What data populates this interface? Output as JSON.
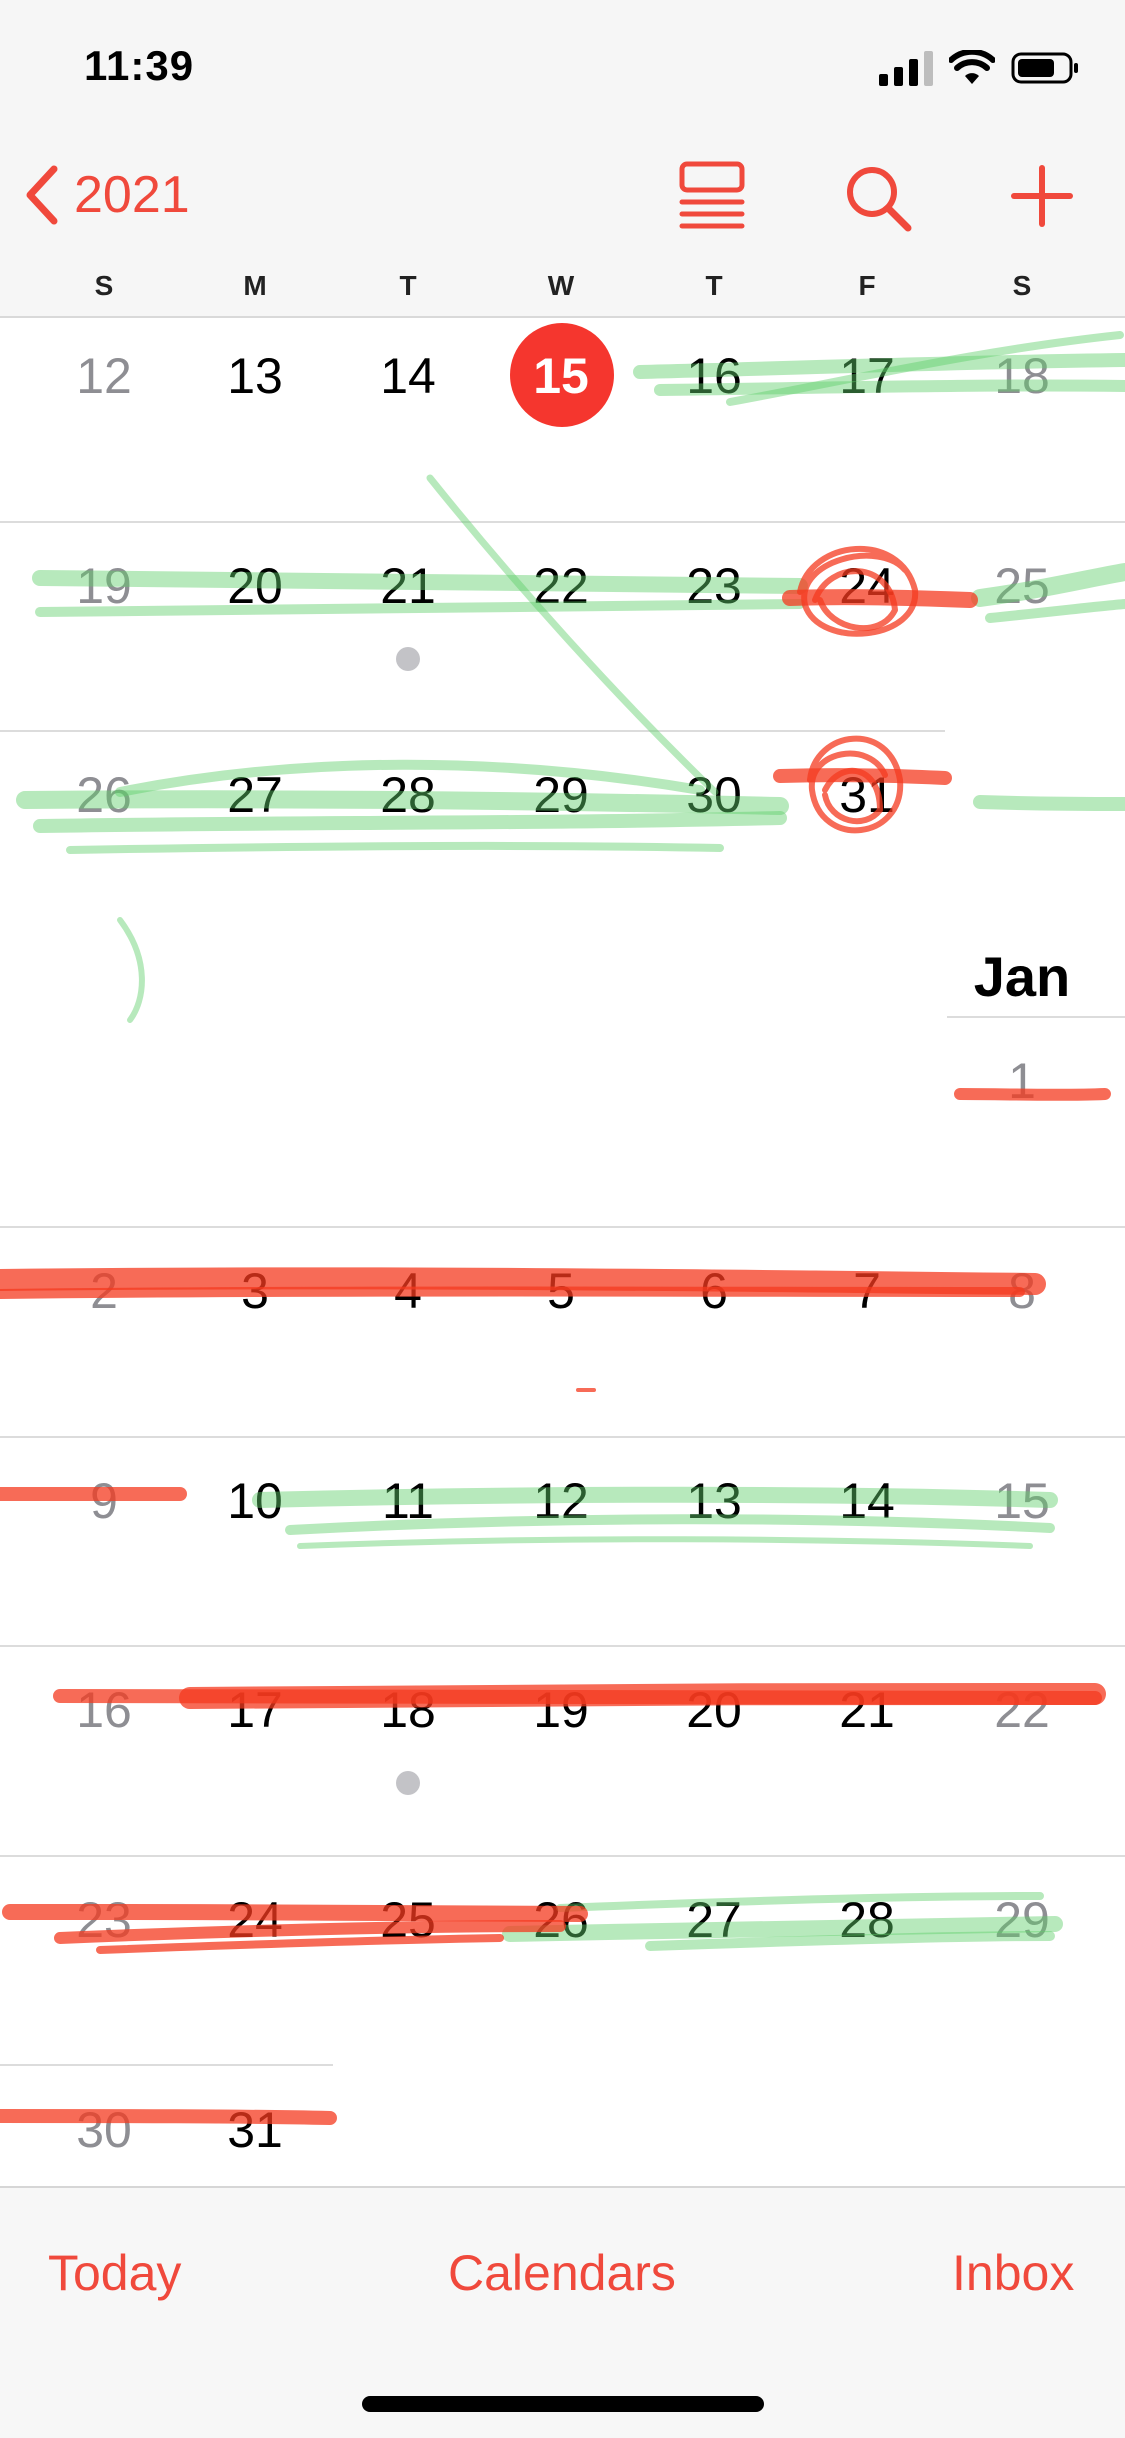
{
  "status_bar": {
    "time": "11:39"
  },
  "nav": {
    "back_label": "2021"
  },
  "weekdays": [
    "S",
    "M",
    "T",
    "W",
    "T",
    "F",
    "S"
  ],
  "month_label": "Jan",
  "december_weeks": [
    [
      "12",
      "13",
      "14",
      "15",
      "16",
      "17",
      "18"
    ],
    [
      "19",
      "20",
      "21",
      "22",
      "23",
      "24",
      "25"
    ],
    [
      "26",
      "27",
      "28",
      "29",
      "30",
      "31"
    ]
  ],
  "january_weeks": [
    [
      "1"
    ],
    [
      "2",
      "3",
      "4",
      "5",
      "6",
      "7",
      "8"
    ],
    [
      "9",
      "10",
      "11",
      "12",
      "13",
      "14",
      "15"
    ],
    [
      "16",
      "17",
      "18",
      "19",
      "20",
      "21",
      "22"
    ],
    [
      "23",
      "24",
      "25",
      "26",
      "27",
      "28",
      "29"
    ],
    [
      "30",
      "31"
    ]
  ],
  "today": "15",
  "toolbar": {
    "today_label": "Today",
    "calendars_label": "Calendars",
    "inbox_label": "Inbox"
  },
  "colors": {
    "accent": "#f0493c",
    "today_circle": "#f5362e",
    "ink_green": "#5fcf6b",
    "ink_red": "#f4391f"
  },
  "icons": [
    "chevron-left-icon",
    "list-view-icon",
    "search-icon",
    "plus-icon"
  ]
}
